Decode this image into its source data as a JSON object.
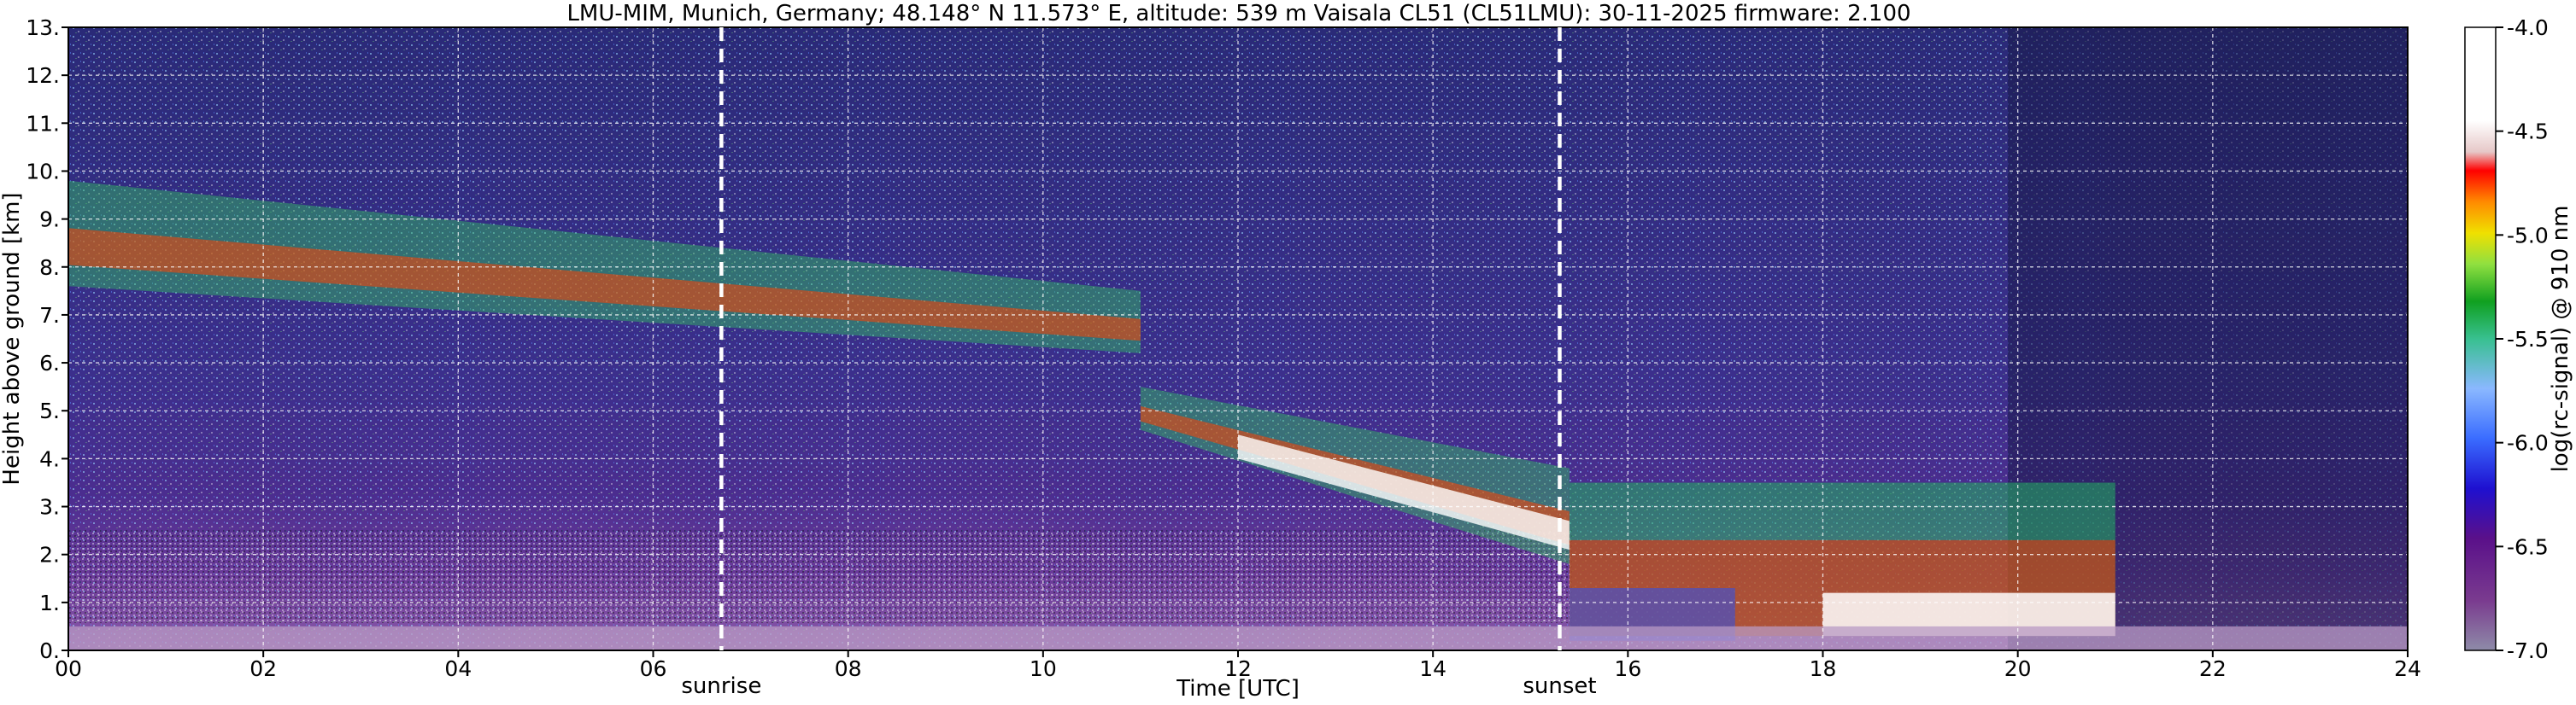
{
  "chart_data": {
    "type": "heatmap",
    "title": "LMU-MIM, Munich, Germany; 48.148° N 11.573° E, altitude: 539 m    Vaisala CL51 (CL51LMU): 30-11-2025    firmware: 2.100",
    "xlabel": "Time [UTC]",
    "ylabel": "Height above ground [km]",
    "xlim": [
      0,
      24
    ],
    "ylim": [
      0,
      13
    ],
    "x_ticks": [
      "00",
      "02",
      "04",
      "06",
      "08",
      "10",
      "12",
      "14",
      "16",
      "18",
      "20",
      "22",
      "24"
    ],
    "y_ticks": [
      "0.",
      "1.",
      "2.",
      "3.",
      "4.",
      "5.",
      "6.",
      "7.",
      "8.",
      "9.",
      "10.",
      "11.",
      "12.",
      "13."
    ],
    "grid": true,
    "annotations": [
      {
        "label": "sunrise",
        "x": 6.7
      },
      {
        "label": "sunset",
        "x": 15.3
      }
    ],
    "colorbar": {
      "label": "log(rc-signal) @ 910 nm",
      "range": [
        -7.0,
        -4.0
      ],
      "ticks": [
        "-7.0",
        "-6.5",
        "-6.0",
        "-5.5",
        "-5.0",
        "-4.5",
        "-4.0"
      ]
    },
    "features": [
      {
        "layer": "cirrus",
        "start": 0.0,
        "end": 11.0,
        "base_start": 7.6,
        "base_end": 6.2,
        "top_start": 9.8,
        "top_end": 7.5
      },
      {
        "layer": "descending cloud",
        "start": 11.0,
        "end": 15.4,
        "base_start": 4.6,
        "base_end": 1.8,
        "top_start": 5.5,
        "top_end": 3.8
      },
      {
        "layer": "low cloud",
        "start": 15.4,
        "end": 21.0,
        "base": 0.3,
        "top": 3.5
      },
      {
        "layer": "boundary layer",
        "start": 0.0,
        "end": 24.0,
        "base": 0.0,
        "top": 0.5
      }
    ]
  }
}
